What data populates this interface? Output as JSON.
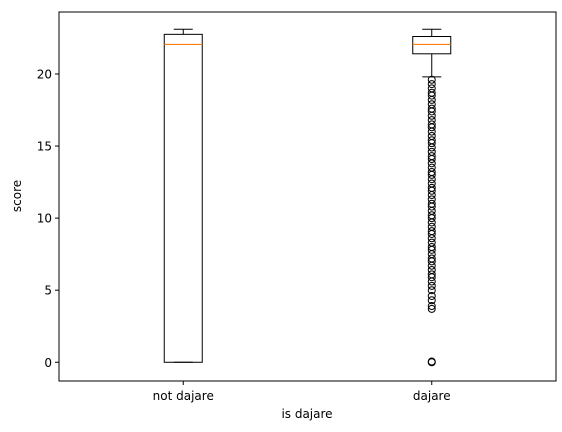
{
  "chart_data": {
    "type": "box",
    "title": "",
    "xlabel": "is dajare",
    "ylabel": "score",
    "ylim": [
      -1.3,
      24.3
    ],
    "yticks": [
      0,
      5,
      10,
      15,
      20
    ],
    "categories": [
      "not dajare",
      "dajare"
    ],
    "boxes": [
      {
        "label": "not dajare",
        "whisker_low": 0.0,
        "q1": 0.0,
        "median": 22.05,
        "q3": 22.75,
        "whisker_high": 23.1,
        "outliers": []
      },
      {
        "label": "dajare",
        "whisker_low": 19.8,
        "q1": 21.4,
        "median": 22.05,
        "q3": 22.6,
        "whisker_high": 23.1,
        "outliers": [
          0.0,
          0.05,
          3.7,
          3.9,
          4.3,
          4.6,
          5.0,
          5.3,
          5.6,
          5.9,
          6.1,
          6.4,
          6.7,
          7.0,
          7.2,
          7.5,
          7.8,
          8.0,
          8.3,
          8.6,
          8.9,
          9.1,
          9.4,
          9.7,
          10.0,
          10.2,
          10.5,
          10.8,
          11.0,
          11.3,
          11.6,
          11.9,
          12.1,
          12.4,
          12.7,
          13.0,
          13.2,
          13.5,
          13.8,
          14.1,
          14.3,
          14.6,
          14.9,
          15.2,
          15.4,
          15.7,
          16.0,
          16.3,
          16.5,
          16.8,
          17.1,
          17.4,
          17.6,
          17.9,
          18.2,
          18.5,
          18.7,
          19.0,
          19.3,
          19.6
        ]
      }
    ],
    "colors": {
      "box": "#000000",
      "median": "#ff7f0e"
    },
    "grid": false
  }
}
